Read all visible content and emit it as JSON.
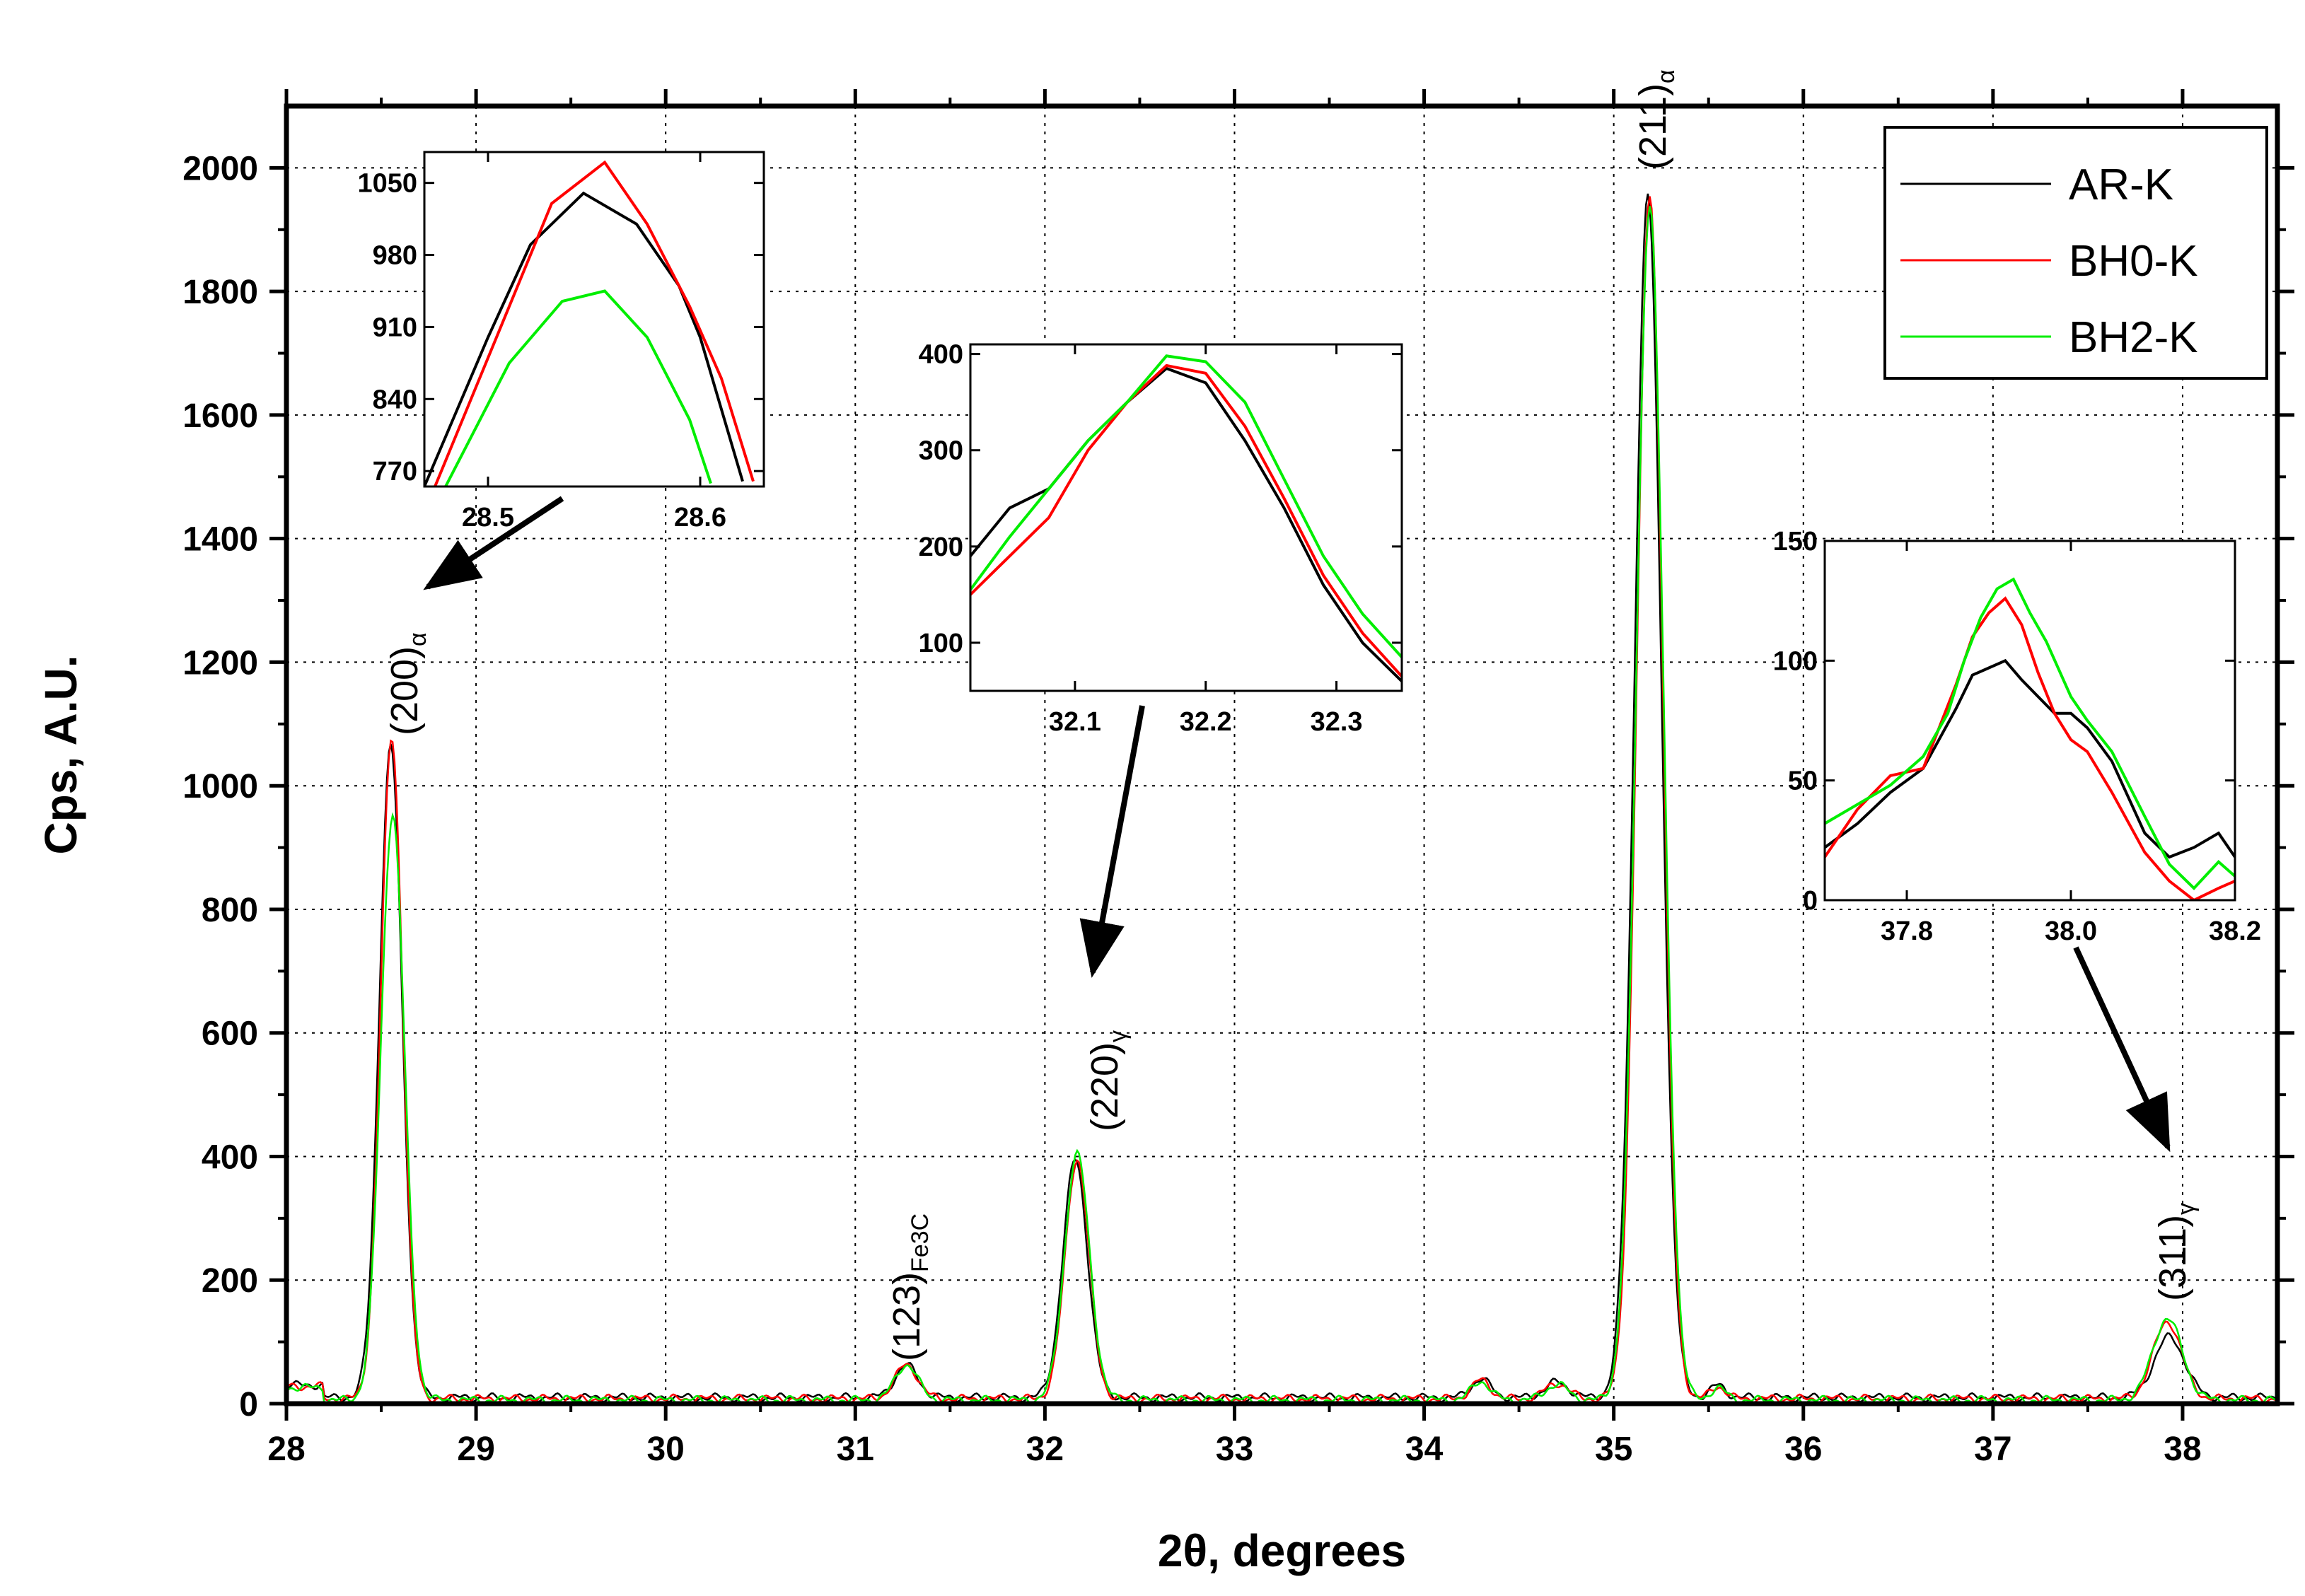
{
  "chart_data": {
    "type": "line",
    "xlabel": "2θ, degrees",
    "ylabel": "Cps, A.U.",
    "xlim": [
      28,
      38.5
    ],
    "ylim": [
      0,
      2100
    ],
    "xticks": [
      28,
      29,
      30,
      31,
      32,
      33,
      34,
      35,
      36,
      37,
      38
    ],
    "yticks": [
      0,
      200,
      400,
      600,
      800,
      1000,
      1200,
      1400,
      1600,
      1800,
      2000
    ],
    "grid": true,
    "legend_position": "top-right",
    "series": [
      {
        "name": "AR-K",
        "color": "#000000",
        "peaks": [
          [
            28.55,
            1055,
            0.06
          ],
          [
            31.27,
            52,
            0.06
          ],
          [
            32.16,
            385,
            0.065
          ],
          [
            35.18,
            1945,
            0.07
          ],
          [
            37.93,
            98,
            0.08
          ]
        ],
        "baseline": 10
      },
      {
        "name": "BH0-K",
        "color": "#ff0000",
        "peaks": [
          [
            28.555,
            1070,
            0.058
          ],
          [
            31.27,
            55,
            0.06
          ],
          [
            32.17,
            388,
            0.063
          ],
          [
            35.19,
            1950,
            0.068
          ],
          [
            37.92,
            125,
            0.075
          ]
        ],
        "baseline": 8
      },
      {
        "name": "BH2-K",
        "color": "#00ee00",
        "peaks": [
          [
            28.56,
            950,
            0.062
          ],
          [
            31.27,
            57,
            0.06
          ],
          [
            32.17,
            398,
            0.066
          ],
          [
            35.19,
            1935,
            0.071
          ],
          [
            37.92,
            132,
            0.078
          ]
        ],
        "baseline": 6
      }
    ],
    "annotations": [
      {
        "main": "(200)",
        "sub": "α"
      },
      {
        "main": "(123)",
        "sub": "Fe3C"
      },
      {
        "main": "(220)",
        "sub": "γ"
      },
      {
        "main": "(211)",
        "sub": "α"
      },
      {
        "main": "(311)",
        "sub": "γ"
      }
    ],
    "insets": [
      {
        "name": "inset-200",
        "xlim": [
          28.47,
          28.63
        ],
        "ylim": [
          755,
          1080
        ],
        "xticks": [
          28.5,
          28.6
        ],
        "yticks": [
          770,
          840,
          910,
          980,
          1050
        ],
        "series": [
          {
            "name": "AR-K",
            "x": [
              28.47,
              28.5,
              28.52,
              28.545,
              28.57,
              28.59,
              28.6,
              28.62
            ],
            "y": [
              755,
              900,
              990,
              1040,
              1010,
              950,
              900,
              760
            ]
          },
          {
            "name": "BH0-K",
            "x": [
              28.475,
              28.5,
              28.53,
              28.555,
              28.575,
              28.595,
              28.61,
              28.625
            ],
            "y": [
              755,
              880,
              1030,
              1070,
              1010,
              930,
              860,
              760
            ]
          },
          {
            "name": "BH2-K",
            "x": [
              28.48,
              28.51,
              28.535,
              28.555,
              28.575,
              28.595,
              28.605
            ],
            "y": [
              755,
              875,
              935,
              945,
              900,
              820,
              758
            ]
          }
        ]
      },
      {
        "name": "inset-220",
        "xlim": [
          32.02,
          32.35
        ],
        "ylim": [
          50,
          410
        ],
        "xticks": [
          32.1,
          32.2,
          32.3
        ],
        "yticks": [
          100,
          200,
          300,
          400
        ],
        "series": [
          {
            "name": "AR-K",
            "x": [
              32.02,
              32.05,
              32.08,
              32.11,
              32.14,
              32.17,
              32.2,
              32.23,
              32.26,
              32.29,
              32.32,
              32.35
            ],
            "y": [
              190,
              240,
              260,
              310,
              350,
              385,
              370,
              310,
              240,
              160,
              100,
              60
            ]
          },
          {
            "name": "BH0-K",
            "x": [
              32.02,
              32.05,
              32.08,
              32.11,
              32.14,
              32.17,
              32.2,
              32.23,
              32.26,
              32.29,
              32.32,
              32.35
            ],
            "y": [
              150,
              190,
              230,
              300,
              350,
              388,
              380,
              325,
              250,
              170,
              110,
              65
            ]
          },
          {
            "name": "BH2-K",
            "x": [
              32.02,
              32.05,
              32.08,
              32.11,
              32.14,
              32.17,
              32.2,
              32.23,
              32.26,
              32.29,
              32.32,
              32.35
            ],
            "y": [
              155,
              210,
              260,
              310,
              350,
              398,
              392,
              350,
              270,
              190,
              130,
              85
            ]
          }
        ]
      },
      {
        "name": "inset-311",
        "xlim": [
          37.7,
          38.2
        ],
        "ylim": [
          0,
          150
        ],
        "xticks": [
          37.8,
          38.0,
          38.2
        ],
        "yticks": [
          0,
          50,
          100,
          150
        ],
        "series": [
          {
            "name": "AR-K",
            "x": [
              37.7,
              37.74,
              37.78,
              37.82,
              37.86,
              37.88,
              37.9,
              37.92,
              37.94,
              37.96,
              37.98,
              38.0,
              38.02,
              38.05,
              38.09,
              38.12,
              38.15,
              38.18,
              38.2
            ],
            "y": [
              22,
              32,
              45,
              55,
              80,
              94,
              97,
              100,
              92,
              85,
              78,
              78,
              72,
              58,
              28,
              18,
              22,
              28,
              18
            ]
          },
          {
            "name": "BH0-K",
            "x": [
              37.7,
              37.74,
              37.78,
              37.82,
              37.86,
              37.88,
              37.9,
              37.92,
              37.94,
              37.96,
              37.98,
              38.0,
              38.02,
              38.05,
              38.09,
              38.12,
              38.15,
              38.18,
              38.2
            ],
            "y": [
              18,
              38,
              52,
              55,
              90,
              110,
              120,
              126,
              115,
              95,
              78,
              67,
              62,
              45,
              20,
              8,
              0,
              5,
              8
            ]
          },
          {
            "name": "BH2-K",
            "x": [
              37.7,
              37.74,
              37.78,
              37.82,
              37.85,
              37.87,
              37.89,
              37.91,
              37.93,
              37.95,
              37.97,
              38.0,
              38.02,
              38.05,
              38.09,
              38.12,
              38.15,
              38.18,
              38.2
            ],
            "y": [
              32,
              40,
              48,
              60,
              78,
              100,
              118,
              130,
              134,
              120,
              108,
              85,
              75,
              62,
              35,
              15,
              5,
              16,
              10
            ]
          }
        ]
      }
    ]
  }
}
